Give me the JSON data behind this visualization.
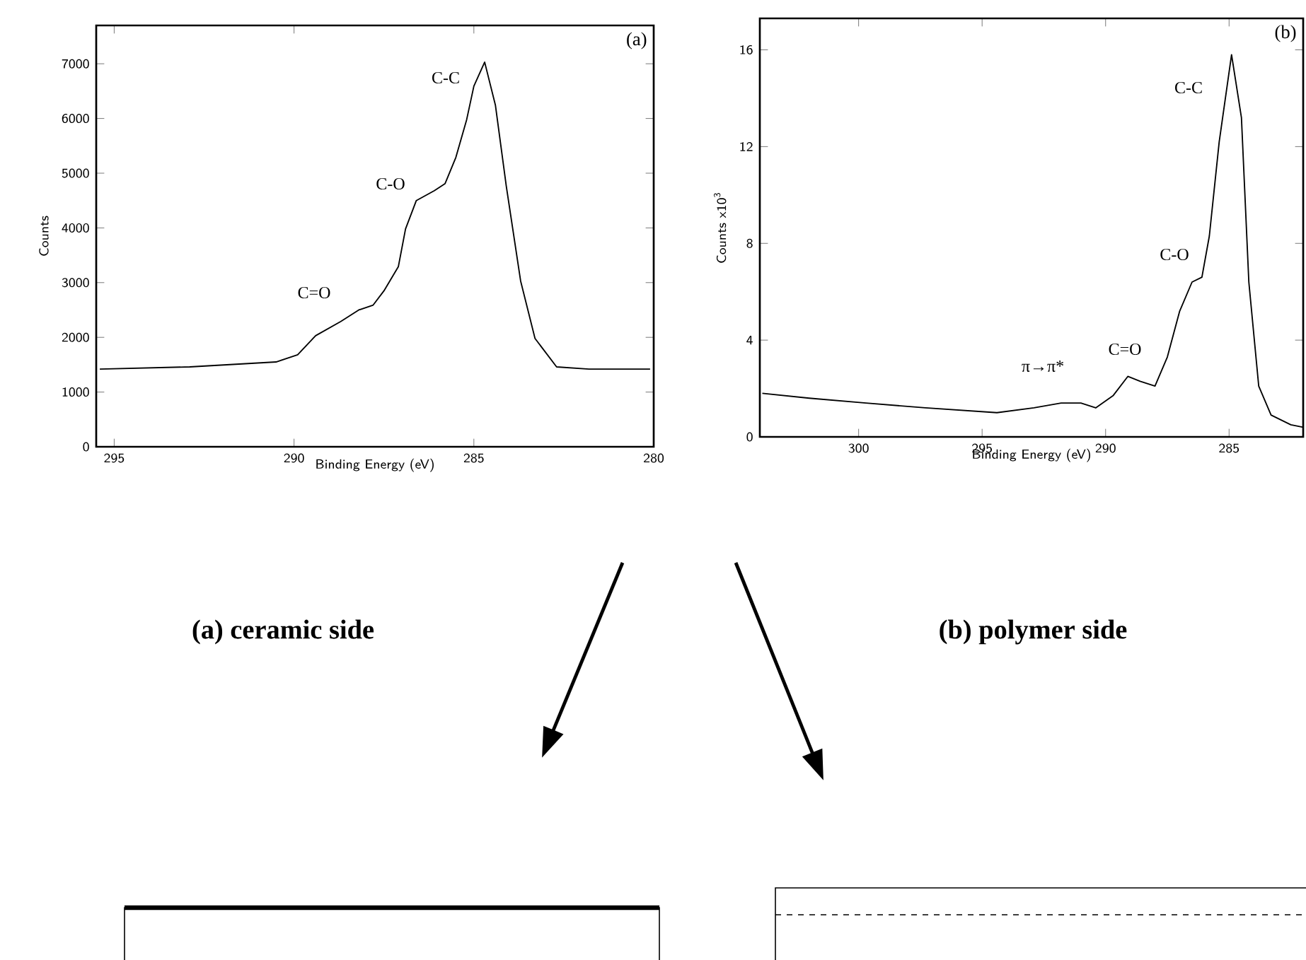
{
  "chart_data": [
    {
      "type": "line",
      "xlabel": "Binding Energy (eV)",
      "ylabel": "Counts",
      "xlim": [
        295.5,
        280
      ],
      "ylim": [
        0,
        7700
      ],
      "xticks": [
        295,
        290,
        285,
        280
      ],
      "yticks": [
        0,
        1000,
        2000,
        3000,
        4000,
        5000,
        6000,
        7000
      ],
      "series": [
        {
          "color": "#000000",
          "x": [
            295.4,
            292.9,
            290.5,
            289.9,
            289.4,
            288.7,
            288.2,
            287.8,
            287.5,
            287.1,
            286.9,
            286.6,
            286.1,
            285.8,
            285.5,
            285.2,
            285.0,
            284.7,
            284.4,
            284.1,
            283.7,
            283.3,
            282.7,
            281.8,
            280.1
          ],
          "values": [
            1420,
            1460,
            1550,
            1680,
            2030,
            2290,
            2500,
            2590,
            2850,
            3290,
            3980,
            4500,
            4680,
            4810,
            5290,
            5980,
            6590,
            7030,
            6240,
            4770,
            3030,
            1980,
            1460,
            1420,
            1420
          ]
        }
      ],
      "annotations": [
        "(a)",
        "(a) ceramic side",
        "C-C",
        "C-O",
        "C=O"
      ]
    },
    {
      "type": "line",
      "xlabel": "Binding Energy (eV)",
      "ylabel": "Counts x10$^{3}$",
      "xlim": [
        304,
        282
      ],
      "ylim": [
        0,
        17.3
      ],
      "xticks": [
        300,
        295,
        290,
        285
      ],
      "yticks": [
        0,
        4,
        8,
        12,
        16
      ],
      "series": [
        {
          "color": "#000000",
          "x": [
            303.9,
            302.0,
            299.7,
            297.3,
            294.4,
            292.9,
            291.8,
            291.0,
            290.4,
            289.7,
            289.1,
            288.6,
            288.0,
            287.5,
            287.0,
            286.5,
            286.1,
            285.8,
            285.4,
            284.9,
            284.5,
            284.2,
            283.8,
            283.3,
            282.5,
            282.0
          ],
          "values": [
            1.8,
            1.6,
            1.4,
            1.2,
            1.0,
            1.2,
            1.4,
            1.4,
            1.2,
            1.7,
            2.5,
            2.3,
            2.1,
            3.3,
            5.2,
            6.4,
            6.6,
            8.3,
            12.2,
            15.8,
            13.2,
            6.4,
            2.1,
            0.9,
            0.5,
            0.4
          ]
        }
      ],
      "annotations": [
        "(b)",
        "(b) polymer side",
        "C-C",
        "C-O",
        "C=O",
        "π→π*"
      ]
    }
  ]
}
